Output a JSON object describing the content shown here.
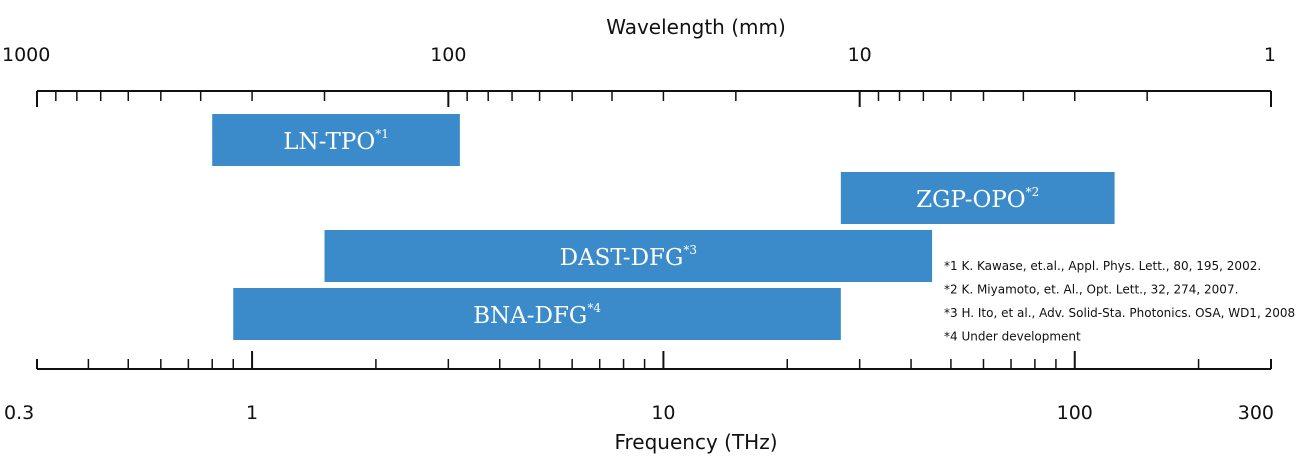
{
  "chart_data": {
    "type": "range-bar",
    "top_axis": {
      "label": "Wavelength (mm)",
      "scale": "log",
      "range": [
        1000,
        1
      ],
      "tick_labels": [
        {
          "value": 1000,
          "text": "1000"
        },
        {
          "value": 100,
          "text": "100"
        },
        {
          "value": 10,
          "text": "10"
        },
        {
          "value": 1,
          "text": "1"
        }
      ]
    },
    "bottom_axis": {
      "label": "Frequency (THz)",
      "scale": "log",
      "range": [
        0.3,
        300
      ],
      "tick_labels": [
        {
          "value": 0.3,
          "text": "0.3"
        },
        {
          "value": 1,
          "text": "1"
        },
        {
          "value": 10,
          "text": "10"
        },
        {
          "value": 100,
          "text": "100"
        },
        {
          "value": 300,
          "text": "300"
        }
      ]
    },
    "color": "#3b8bcb",
    "series": [
      {
        "name": "LN-TPO",
        "sup": "*1",
        "freq_start": 0.8,
        "freq_end": 3.2
      },
      {
        "name": "ZGP-OPO",
        "sup": "*2",
        "freq_start": 27,
        "freq_end": 125
      },
      {
        "name": "DAST-DFG",
        "sup": "*3",
        "freq_start": 1.5,
        "freq_end": 45
      },
      {
        "name": "BNA-DFG",
        "sup": "*4",
        "freq_start": 0.9,
        "freq_end": 27
      }
    ],
    "annotations": [
      "*1  K. Kawase, et.al., Appl. Phys. Lett., 80, 195, 2002.",
      "*2  K. Miyamoto, et. Al., Opt. Lett., 32, 274, 2007.",
      "*3  H. Ito, et al., Adv. Solid-Sta. Photonics. OSA, WD1, 2008.",
      "*4  Under development"
    ]
  }
}
